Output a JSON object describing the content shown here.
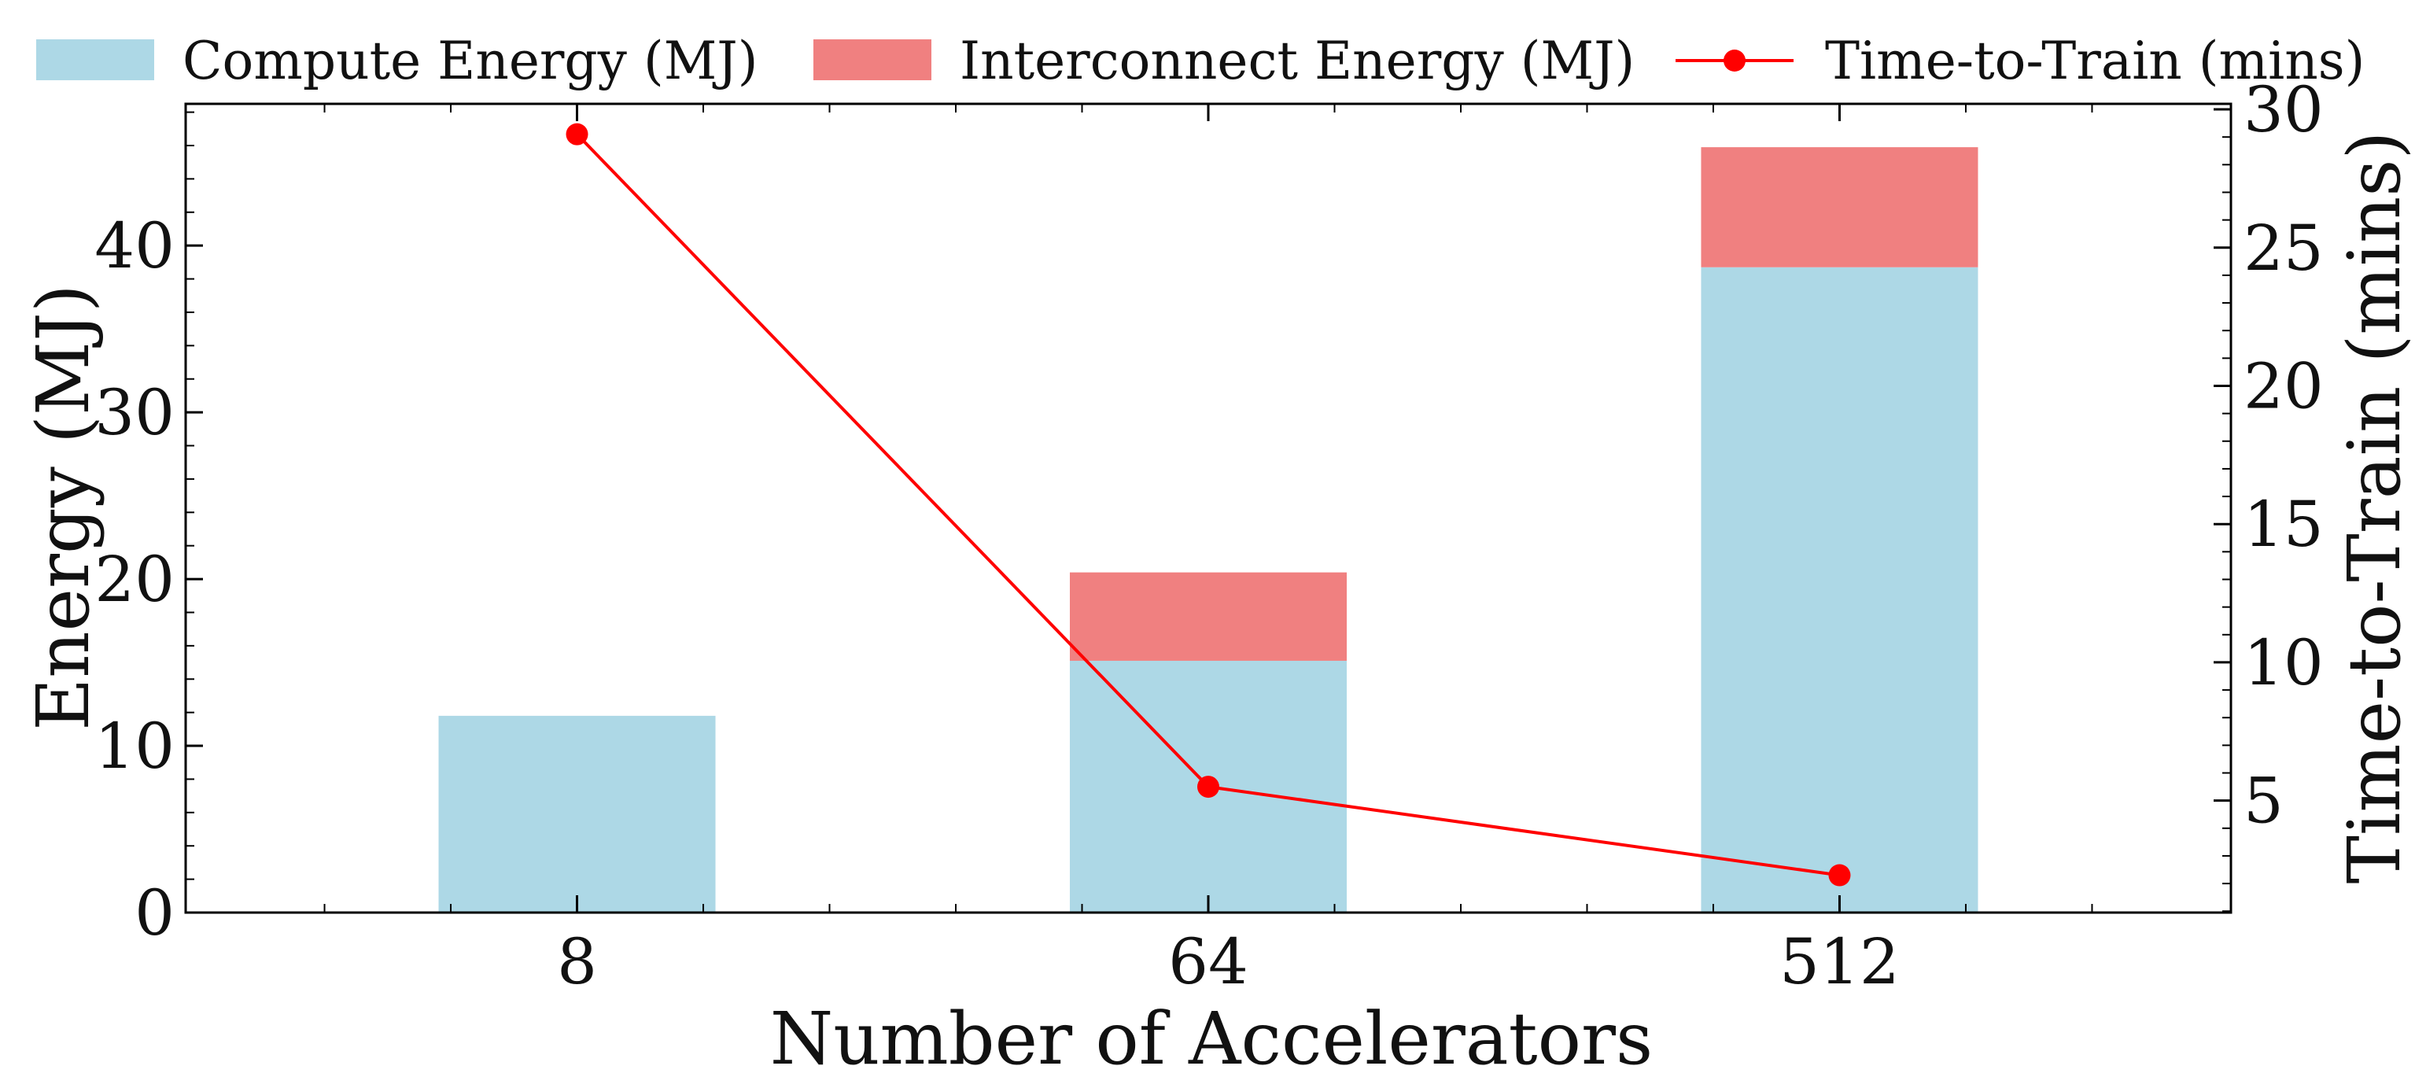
{
  "chart_data": {
    "type": "bar",
    "title": "",
    "xlabel": "Number of Accelerators",
    "ylabel": "Energy (MJ)",
    "y2label": "Time-to-Train (mins)",
    "categories": [
      "8",
      "64",
      "512"
    ],
    "ylim": [
      0,
      48.5
    ],
    "y2lim": [
      0.95,
      30.2
    ],
    "yticks": [
      0,
      10,
      20,
      30,
      40
    ],
    "y2ticks": [
      5,
      10,
      15,
      20,
      25,
      30
    ],
    "stacked": true,
    "series": [
      {
        "name": "Compute Energy (MJ)",
        "type": "bar",
        "axis": "left",
        "color": "#add8e6",
        "values": [
          11.8,
          15.1,
          38.7
        ]
      },
      {
        "name": "Interconnect Energy (MJ)",
        "type": "bar",
        "axis": "left",
        "color": "#f08080",
        "values": [
          0,
          5.3,
          7.2
        ]
      },
      {
        "name": "Time-to-Train (mins)",
        "type": "line",
        "axis": "right",
        "color": "#ff0000",
        "values": [
          29.1,
          5.5,
          2.3
        ]
      }
    ],
    "legend": "top",
    "grid": false
  }
}
